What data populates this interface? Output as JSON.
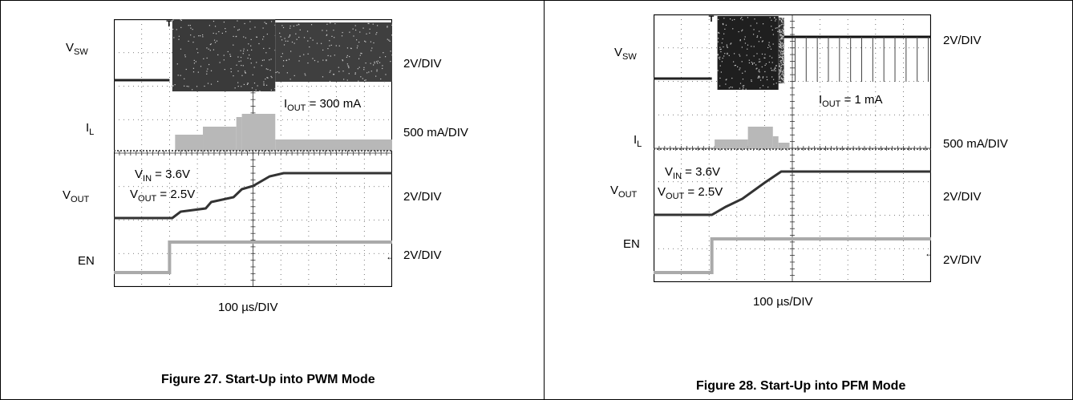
{
  "chart_data": [
    {
      "type": "oscilloscope",
      "title": "Figure 27. Start-Up into PWM Mode",
      "xlabel": "100 µs/DIV",
      "x_div": 10,
      "y_div": 8,
      "channels": [
        {
          "name_main": "V",
          "name_sub": "SW",
          "scale": "2V/DIV"
        },
        {
          "name_main": "I",
          "name_sub": "L",
          "scale": "500 mA/DIV"
        },
        {
          "name_main": "V",
          "name_sub": "OUT",
          "scale": "2V/DIV"
        },
        {
          "name_main": "EN",
          "name_sub": "",
          "scale": "2V/DIV"
        }
      ],
      "annotations": {
        "iout_main": "I",
        "iout_sub": "OUT",
        "iout_val": " = 300 mA",
        "vin_main": "V",
        "vin_sub": "IN",
        "vin_val": " = 3.6V",
        "vout_main": "V",
        "vout_sub": "OUT",
        "vout_val": " = 2.5V"
      },
      "mode": "PWM"
    },
    {
      "type": "oscilloscope",
      "title": "Figure 28. Start-Up into PFM Mode",
      "xlabel": "100 µs/DIV",
      "x_div": 10,
      "y_div": 8,
      "channels": [
        {
          "name_main": "V",
          "name_sub": "SW",
          "scale": "2V/DIV"
        },
        {
          "name_main": "I",
          "name_sub": "L",
          "scale": "500 mA/DIV"
        },
        {
          "name_main": "V",
          "name_sub": "OUT",
          "scale": "2V/DIV"
        },
        {
          "name_main": "EN",
          "name_sub": "",
          "scale": "2V/DIV"
        }
      ],
      "annotations": {
        "iout_main": "I",
        "iout_sub": "OUT",
        "iout_val": " = 1 mA",
        "vin_main": "V",
        "vin_sub": "IN",
        "vin_val": " = 3.6V",
        "vout_main": "V",
        "vout_sub": "OUT",
        "vout_val": " = 2.5V"
      },
      "mode": "PFM"
    }
  ]
}
